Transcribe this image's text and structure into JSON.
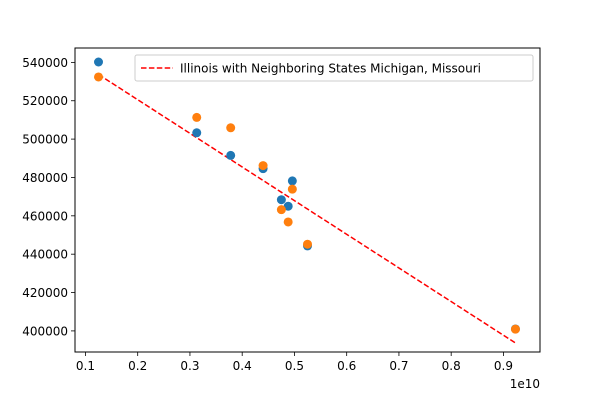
{
  "chart_data": {
    "type": "scatter",
    "title": "",
    "xlabel": "",
    "ylabel": "",
    "x_offset_label": "1e10",
    "xlim": [
      0.08,
      0.97
    ],
    "ylim": [
      389000,
      547500
    ],
    "xticks": [
      {
        "value": 0.1,
        "label": "0.1"
      },
      {
        "value": 0.2,
        "label": "0.2"
      },
      {
        "value": 0.3,
        "label": "0.3"
      },
      {
        "value": 0.4,
        "label": "0.4"
      },
      {
        "value": 0.5,
        "label": "0.5"
      },
      {
        "value": 0.6,
        "label": "0.6"
      },
      {
        "value": 0.7,
        "label": "0.7"
      },
      {
        "value": 0.8,
        "label": "0.8"
      },
      {
        "value": 0.9,
        "label": "0.9"
      }
    ],
    "yticks": [
      {
        "value": 400000,
        "label": "400000"
      },
      {
        "value": 420000,
        "label": "420000"
      },
      {
        "value": 440000,
        "label": "440000"
      },
      {
        "value": 460000,
        "label": "460000"
      },
      {
        "value": 480000,
        "label": "480000"
      },
      {
        "value": 500000,
        "label": "500000"
      },
      {
        "value": 520000,
        "label": "520000"
      },
      {
        "value": 540000,
        "label": "540000"
      }
    ],
    "series": [
      {
        "color": "#1f77b4",
        "points": [
          [
            0.125,
            540200
          ],
          [
            0.313,
            503300
          ],
          [
            0.378,
            491500
          ],
          [
            0.44,
            484600
          ],
          [
            0.475,
            468400
          ],
          [
            0.488,
            465000
          ],
          [
            0.496,
            478200
          ],
          [
            0.525,
            444300
          ],
          [
            0.923,
            401000
          ]
        ]
      },
      {
        "color": "#ff7f0e",
        "points": [
          [
            0.125,
            532400
          ],
          [
            0.313,
            511300
          ],
          [
            0.378,
            505900
          ],
          [
            0.44,
            486200
          ],
          [
            0.475,
            463200
          ],
          [
            0.488,
            456800
          ],
          [
            0.496,
            473900
          ],
          [
            0.525,
            445200
          ],
          [
            0.923,
            400900
          ]
        ]
      }
    ],
    "fit_line": {
      "name": "Illinois with Neighboring States Michigan, Missouri",
      "color": "#ff0000",
      "style": "dashed",
      "x": [
        0.125,
        0.923
      ],
      "y": [
        533700,
        393700
      ]
    },
    "legend_location": "upper right",
    "grid": false
  }
}
